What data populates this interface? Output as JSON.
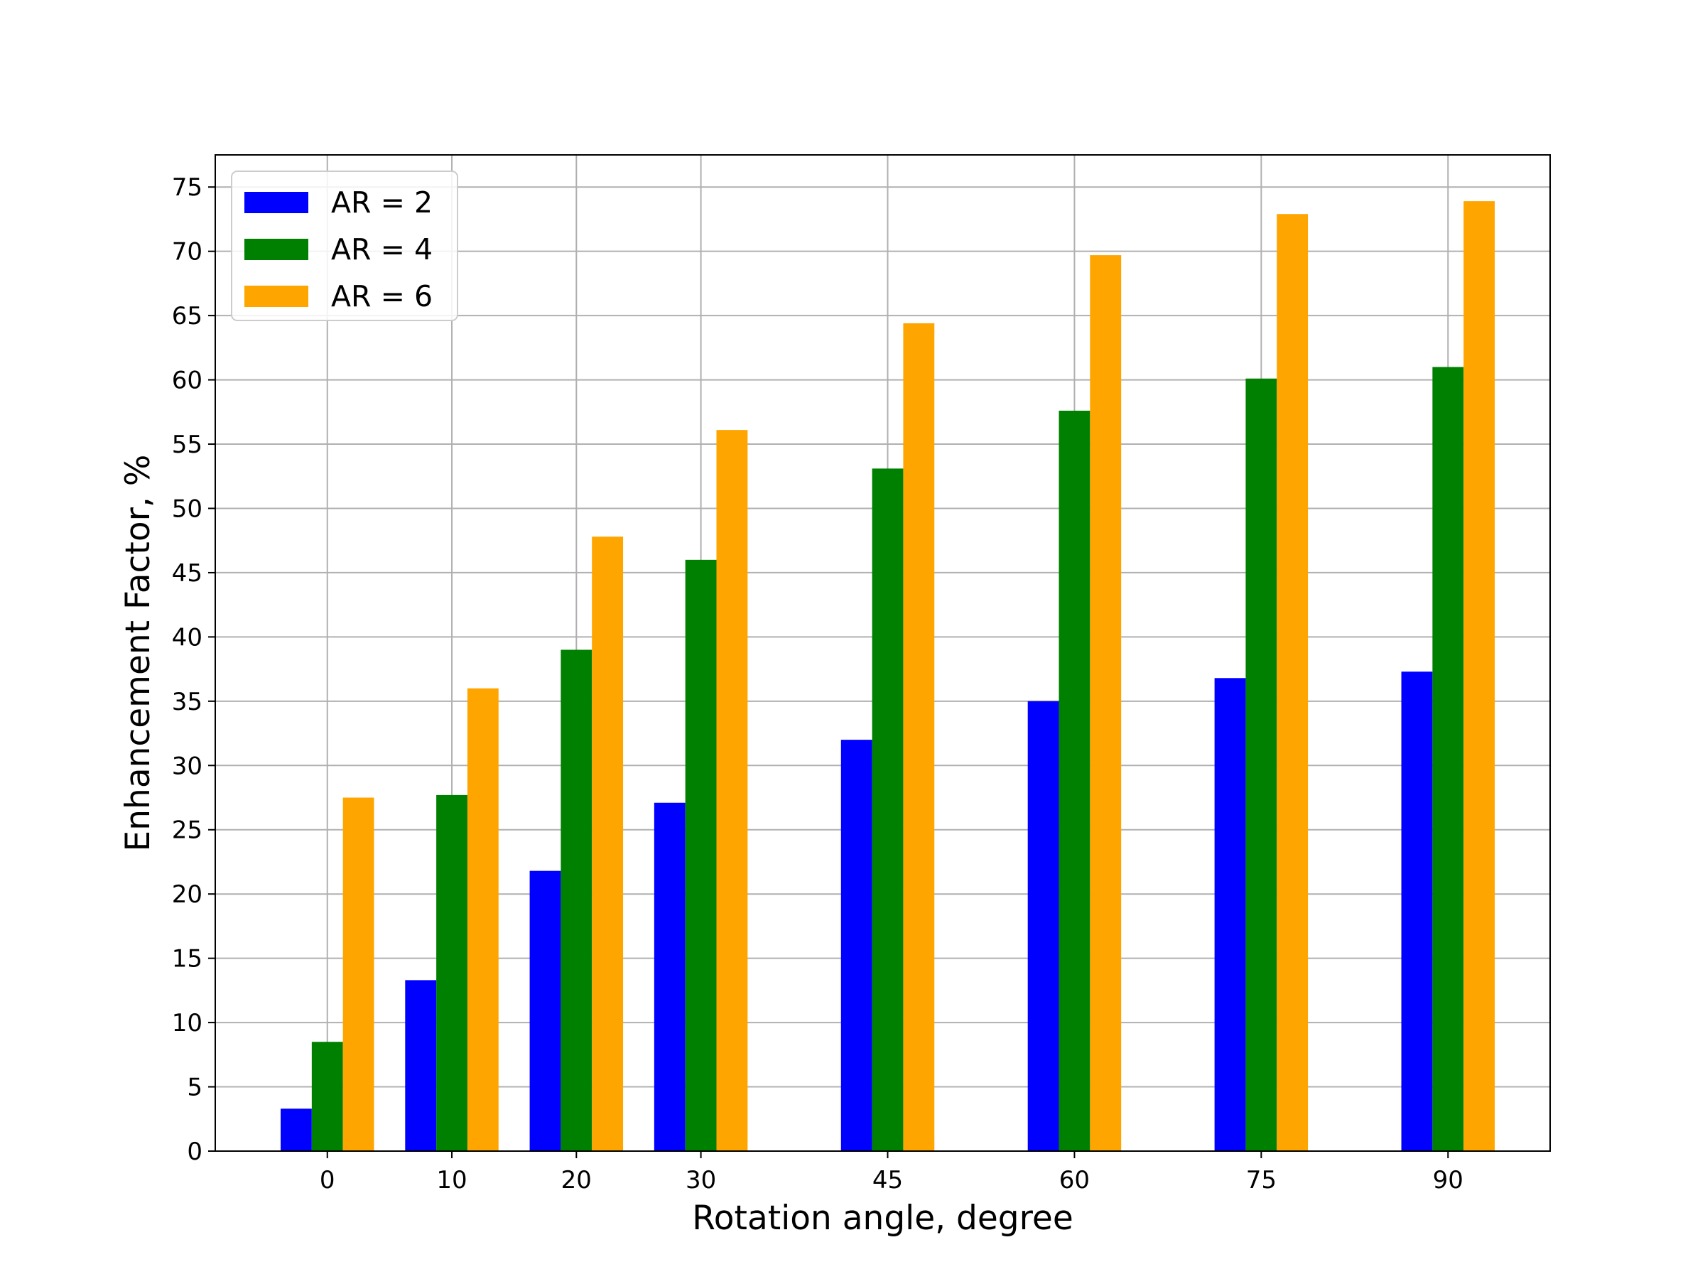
{
  "chart_data": {
    "type": "bar",
    "title": "",
    "xlabel": "Rotation angle, degree",
    "ylabel": "Enhancement Factor, %",
    "x": [
      0,
      10,
      20,
      30,
      45,
      60,
      75,
      90
    ],
    "x_tick_labels": [
      "0",
      "10",
      "20",
      "30",
      "45",
      "60",
      "75",
      "90"
    ],
    "xlim": [
      -9,
      98.2
    ],
    "ylim": [
      0,
      77.5
    ],
    "y_ticks": [
      0,
      5,
      10,
      15,
      20,
      25,
      30,
      35,
      40,
      45,
      50,
      55,
      60,
      65,
      70,
      75
    ],
    "bar_width": 2.5,
    "grid": true,
    "legend_position": "upper left",
    "series": [
      {
        "name": "AR = 2",
        "color": "#0000ff",
        "values": [
          3.3,
          13.3,
          21.8,
          27.1,
          32.0,
          35.0,
          36.8,
          37.3
        ]
      },
      {
        "name": "AR = 4",
        "color": "#008000",
        "values": [
          8.5,
          27.7,
          39.0,
          46.0,
          53.1,
          57.6,
          60.1,
          61.0
        ]
      },
      {
        "name": "AR = 6",
        "color": "#ffa500",
        "values": [
          27.5,
          36.0,
          47.8,
          56.1,
          64.4,
          69.7,
          72.9,
          73.9
        ]
      }
    ]
  }
}
